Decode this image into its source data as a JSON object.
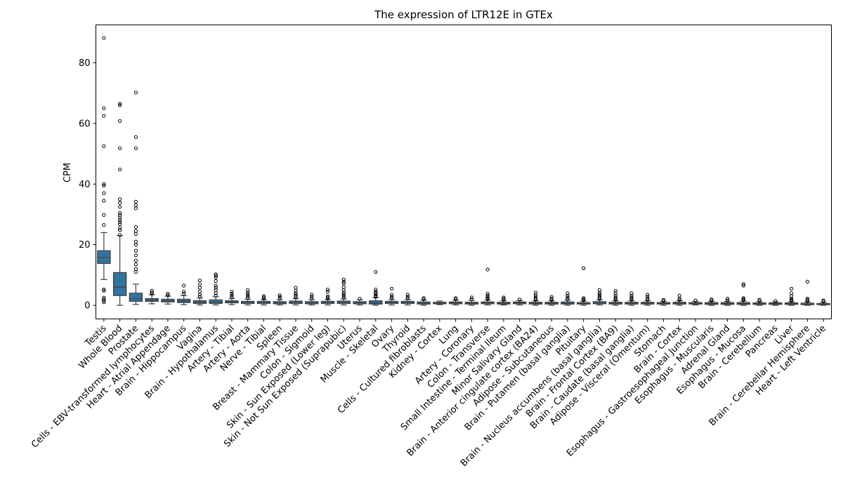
{
  "chart_data": {
    "type": "box",
    "title": "The expression of LTR12E in GTEx",
    "xlabel": "",
    "ylabel": "CPM",
    "ylim": [
      -4.5,
      92.5
    ],
    "yticks": [
      0,
      20,
      40,
      60,
      80
    ],
    "box_color": "#3274a1",
    "categories": [
      "Testis",
      "Whole Blood",
      "Prostate",
      "Cells - EBV-transformed lymphocytes",
      "Heart - Atrial Appendage",
      "Brain - Hippocampus",
      "Vagina",
      "Brain - Hypothalamus",
      "Artery - Tibial",
      "Artery - Aorta",
      "Nerve - Tibial",
      "Spleen",
      "Breast - Mammary Tissue",
      "Colon - Sigmoid",
      "Skin - Sun Exposed (Lower leg)",
      "Skin - Not Sun Exposed (Suprapubic)",
      "Uterus",
      "Muscle - Skeletal",
      "Ovary",
      "Thyroid",
      "Cells - Cultured fibroblasts",
      "Kidney - Cortex",
      "Lung",
      "Artery - Coronary",
      "Colon - Transverse",
      "Small Intestine - Terminal Ileum",
      "Minor Salivary Gland",
      "Brain - Anterior cingulate cortex (BA24)",
      "Adipose - Subcutaneous",
      "Brain - Putamen (basal ganglia)",
      "Pituitary",
      "Brain - Nucleus accumbens (basal ganglia)",
      "Brain - Frontal Cortex (BA9)",
      "Brain - Caudate (basal ganglia)",
      "Adipose - Visceral (Omentum)",
      "Stomach",
      "Brain - Cortex",
      "Esophagus - Gastroesophageal Junction",
      "Esophagus - Muscularis",
      "Adrenal Gland",
      "Esophagus - Mucosa",
      "Brain - Cerebellum",
      "Pancreas",
      "Liver",
      "Brain - Cerebellar Hemisphere",
      "Heart - Left Ventricle"
    ],
    "boxes": [
      {
        "q1": 13.8,
        "median": 15.8,
        "q3": 18.0,
        "whislo": 8.5,
        "whishi": 24.0,
        "fliers": [
          1.0,
          1.5,
          2.0,
          2.5,
          4.8,
          5.2,
          26.5,
          29.8,
          34.5,
          37.0,
          39.5,
          40.0,
          52.5,
          62.5,
          65.0,
          88.2
        ]
      },
      {
        "q1": 3.2,
        "median": 6.0,
        "q3": 10.8,
        "whislo": 0.0,
        "whishi": 23.0,
        "fliers": [
          23.2,
          24.8,
          25.5,
          26.8,
          27.5,
          28.2,
          29.0,
          29.8,
          30.5,
          32.5,
          33.8,
          35.0,
          44.8,
          51.8,
          60.8,
          66.0,
          66.5
        ]
      },
      {
        "q1": 1.3,
        "median": 2.2,
        "q3": 4.0,
        "whislo": 0.3,
        "whishi": 7.0,
        "fliers": [
          11.0,
          12.0,
          13.5,
          14.8,
          16.5,
          18.0,
          20.0,
          21.0,
          23.5,
          24.5,
          25.8,
          32.0,
          33.0,
          34.2,
          51.8,
          55.5,
          70.2
        ]
      },
      {
        "q1": 1.3,
        "median": 1.7,
        "q3": 2.2,
        "whislo": 0.5,
        "whishi": 3.5,
        "fliers": [
          3.8,
          4.2,
          4.8
        ]
      },
      {
        "q1": 1.1,
        "median": 1.5,
        "q3": 2.0,
        "whislo": 0.4,
        "whishi": 3.0,
        "fliers": [
          3.3,
          3.8
        ]
      },
      {
        "q1": 0.9,
        "median": 1.4,
        "q3": 2.0,
        "whislo": 0.2,
        "whishi": 3.2,
        "fliers": [
          3.8,
          4.5,
          6.5
        ]
      },
      {
        "q1": 0.6,
        "median": 1.0,
        "q3": 1.5,
        "whislo": 0.1,
        "whishi": 2.4,
        "fliers": [
          2.8,
          3.5,
          4.5,
          5.8,
          6.8,
          8.2
        ]
      },
      {
        "q1": 0.6,
        "median": 1.0,
        "q3": 1.8,
        "whislo": 0.1,
        "whishi": 2.8,
        "fliers": [
          3.2,
          4.0,
          5.0,
          5.8,
          6.5,
          8.0,
          9.2,
          9.8,
          10.2
        ]
      },
      {
        "q1": 0.8,
        "median": 1.1,
        "q3": 1.5,
        "whislo": 0.2,
        "whishi": 2.2,
        "fliers": [
          2.6,
          3.2,
          3.8,
          4.5
        ]
      },
      {
        "q1": 0.6,
        "median": 0.9,
        "q3": 1.3,
        "whislo": 0.1,
        "whishi": 2.0,
        "fliers": [
          2.4,
          3.0,
          3.6,
          4.2,
          5.0
        ]
      },
      {
        "q1": 0.6,
        "median": 0.9,
        "q3": 1.3,
        "whislo": 0.1,
        "whishi": 1.9,
        "fliers": [
          2.2,
          2.6,
          3.0
        ]
      },
      {
        "q1": 0.5,
        "median": 0.8,
        "q3": 1.2,
        "whislo": 0.1,
        "whishi": 1.8,
        "fliers": [
          2.2,
          2.8,
          3.3
        ]
      },
      {
        "q1": 0.6,
        "median": 0.9,
        "q3": 1.4,
        "whislo": 0.1,
        "whishi": 2.2,
        "fliers": [
          2.6,
          3.0,
          3.5,
          4.0,
          4.8,
          5.8
        ]
      },
      {
        "q1": 0.5,
        "median": 0.8,
        "q3": 1.2,
        "whislo": 0.1,
        "whishi": 1.8,
        "fliers": [
          2.2,
          2.8,
          3.5
        ]
      },
      {
        "q1": 0.6,
        "median": 0.9,
        "q3": 1.3,
        "whislo": 0.1,
        "whishi": 1.9,
        "fliers": [
          2.2,
          2.6,
          3.0,
          4.5,
          5.2
        ]
      },
      {
        "q1": 0.6,
        "median": 0.9,
        "q3": 1.4,
        "whislo": 0.1,
        "whishi": 2.1,
        "fliers": [
          2.5,
          3.0,
          3.6,
          4.2,
          5.0,
          6.0,
          7.2,
          7.8,
          8.5
        ]
      },
      {
        "q1": 0.5,
        "median": 0.8,
        "q3": 1.2,
        "whislo": 0.1,
        "whishi": 1.8,
        "fliers": [
          2.2
        ]
      },
      {
        "q1": 0.4,
        "median": 0.8,
        "q3": 1.5,
        "whislo": 0.0,
        "whishi": 2.5,
        "fliers": [
          2.8,
          3.2,
          3.6,
          4.0,
          4.5,
          5.2,
          11.0
        ]
      },
      {
        "q1": 0.6,
        "median": 0.9,
        "q3": 1.3,
        "whislo": 0.1,
        "whishi": 1.9,
        "fliers": [
          2.3,
          2.8,
          3.5,
          5.5
        ]
      },
      {
        "q1": 0.6,
        "median": 0.9,
        "q3": 1.3,
        "whislo": 0.1,
        "whishi": 1.9,
        "fliers": [
          2.3,
          2.8,
          3.5
        ]
      },
      {
        "q1": 0.4,
        "median": 0.7,
        "q3": 1.1,
        "whislo": 0.0,
        "whishi": 1.7,
        "fliers": [
          2.0,
          2.4
        ]
      },
      {
        "q1": 0.5,
        "median": 0.7,
        "q3": 1.0,
        "whislo": 0.2,
        "whishi": 1.4,
        "fliers": []
      },
      {
        "q1": 0.5,
        "median": 0.8,
        "q3": 1.1,
        "whislo": 0.1,
        "whishi": 1.7,
        "fliers": [
          2.0,
          2.4
        ]
      },
      {
        "q1": 0.4,
        "median": 0.7,
        "q3": 1.0,
        "whislo": 0.0,
        "whishi": 1.6,
        "fliers": [
          2.0,
          2.6
        ]
      },
      {
        "q1": 0.5,
        "median": 0.8,
        "q3": 1.1,
        "whislo": 0.1,
        "whishi": 1.7,
        "fliers": [
          2.0,
          2.4,
          2.8,
          3.2,
          3.8,
          11.8
        ]
      },
      {
        "q1": 0.4,
        "median": 0.7,
        "q3": 1.0,
        "whislo": 0.1,
        "whishi": 1.5,
        "fliers": [
          1.8,
          2.2,
          2.6
        ]
      },
      {
        "q1": 0.5,
        "median": 0.8,
        "q3": 1.1,
        "whislo": 0.1,
        "whishi": 1.6,
        "fliers": [
          1.9
        ]
      },
      {
        "q1": 0.4,
        "median": 0.7,
        "q3": 1.0,
        "whislo": 0.0,
        "whishi": 1.5,
        "fliers": [
          1.8,
          2.2,
          2.8,
          3.4,
          4.2
        ]
      },
      {
        "q1": 0.4,
        "median": 0.7,
        "q3": 1.0,
        "whislo": 0.0,
        "whishi": 1.5,
        "fliers": [
          1.8,
          2.2,
          2.8
        ]
      },
      {
        "q1": 0.4,
        "median": 0.7,
        "q3": 1.1,
        "whislo": 0.0,
        "whishi": 1.7,
        "fliers": [
          2.0,
          2.6,
          3.2,
          4.0
        ]
      },
      {
        "q1": 0.4,
        "median": 0.6,
        "q3": 0.9,
        "whislo": 0.0,
        "whishi": 1.4,
        "fliers": [
          1.7,
          2.0,
          2.4,
          12.2
        ]
      },
      {
        "q1": 0.5,
        "median": 0.8,
        "q3": 1.2,
        "whislo": 0.1,
        "whishi": 1.8,
        "fliers": [
          2.1,
          2.5,
          3.0,
          3.6,
          4.2,
          5.0
        ]
      },
      {
        "q1": 0.4,
        "median": 0.7,
        "q3": 1.0,
        "whislo": 0.0,
        "whishi": 1.5,
        "fliers": [
          1.8,
          2.2,
          2.6,
          3.2,
          4.0,
          4.8
        ]
      },
      {
        "q1": 0.4,
        "median": 0.7,
        "q3": 1.0,
        "whislo": 0.0,
        "whishi": 1.5,
        "fliers": [
          1.8,
          2.2,
          2.6,
          3.2,
          4.0
        ]
      },
      {
        "q1": 0.4,
        "median": 0.7,
        "q3": 1.0,
        "whislo": 0.0,
        "whishi": 1.5,
        "fliers": [
          1.8,
          2.2,
          2.8,
          3.5
        ]
      },
      {
        "q1": 0.4,
        "median": 0.6,
        "q3": 0.9,
        "whislo": 0.0,
        "whishi": 1.3,
        "fliers": [
          1.5,
          1.8
        ]
      },
      {
        "q1": 0.4,
        "median": 0.7,
        "q3": 1.0,
        "whislo": 0.0,
        "whishi": 1.5,
        "fliers": [
          1.8,
          2.2,
          3.2
        ]
      },
      {
        "q1": 0.4,
        "median": 0.6,
        "q3": 0.9,
        "whislo": 0.1,
        "whishi": 1.3,
        "fliers": [
          1.6
        ]
      },
      {
        "q1": 0.3,
        "median": 0.6,
        "q3": 0.9,
        "whislo": 0.0,
        "whishi": 1.3,
        "fliers": [
          1.6,
          2.0
        ]
      },
      {
        "q1": 0.3,
        "median": 0.6,
        "q3": 0.9,
        "whislo": 0.0,
        "whishi": 1.3,
        "fliers": [
          1.6,
          2.2
        ]
      },
      {
        "q1": 0.3,
        "median": 0.6,
        "q3": 0.9,
        "whislo": 0.0,
        "whishi": 1.4,
        "fliers": [
          1.7,
          2.0,
          2.4,
          6.5,
          7.0
        ]
      },
      {
        "q1": 0.3,
        "median": 0.5,
        "q3": 0.8,
        "whislo": 0.0,
        "whishi": 1.2,
        "fliers": [
          1.5,
          1.8
        ]
      },
      {
        "q1": 0.3,
        "median": 0.5,
        "q3": 0.8,
        "whislo": 0.0,
        "whishi": 1.2,
        "fliers": [
          1.4
        ]
      },
      {
        "q1": 0.3,
        "median": 0.5,
        "q3": 0.8,
        "whislo": 0.0,
        "whishi": 1.2,
        "fliers": [
          1.5,
          1.8,
          2.2,
          3.0,
          4.0,
          5.5
        ]
      },
      {
        "q1": 0.2,
        "median": 0.4,
        "q3": 0.7,
        "whislo": 0.0,
        "whishi": 1.1,
        "fliers": [
          1.4,
          1.8,
          2.2,
          7.8
        ]
      },
      {
        "q1": 0.2,
        "median": 0.4,
        "q3": 0.6,
        "whislo": 0.0,
        "whishi": 1.0,
        "fliers": [
          1.3,
          1.6
        ]
      }
    ]
  }
}
